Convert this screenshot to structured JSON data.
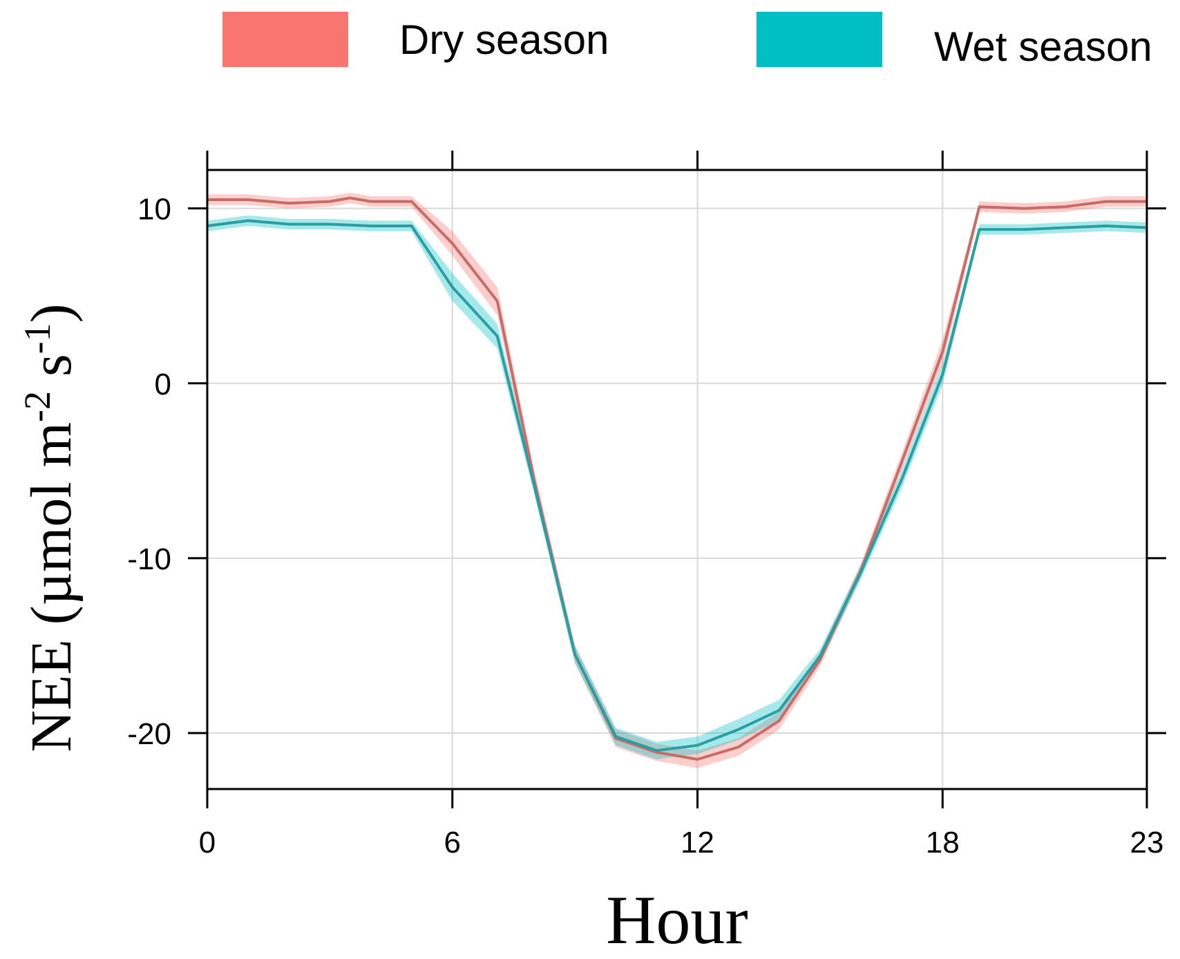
{
  "chart_data": {
    "type": "line",
    "title": "",
    "xlabel": "Hour",
    "ylabel": {
      "main": "NEE (µmol m",
      "sup1": "-2",
      "mid": " s",
      "sup2": "-1",
      "end": ")"
    },
    "xlim": [
      0,
      23
    ],
    "ylim": [
      -23.2,
      12.2
    ],
    "x_ticks": [
      0,
      6,
      12,
      18,
      23
    ],
    "y_ticks": [
      10,
      0,
      -10,
      -20
    ],
    "x_tick_labels": [
      "0",
      "6",
      "12",
      "18",
      "23"
    ],
    "y_tick_labels": [
      "10",
      "0",
      "-10",
      "-20"
    ],
    "grid": true,
    "legend_position": "top",
    "series": [
      {
        "name": "Dry season",
        "color": "#F8766D",
        "band_color": "#F8766D",
        "x": [
          0,
          1,
          2,
          3,
          3.5,
          4,
          5,
          6,
          7.1,
          8,
          9,
          10,
          11,
          12,
          13,
          14,
          15,
          16,
          17,
          18,
          18.9,
          20,
          21,
          22,
          23
        ],
        "y": [
          10.5,
          10.5,
          10.3,
          10.4,
          10.6,
          10.4,
          10.4,
          8.0,
          4.7,
          -5.5,
          -15.5,
          -20.3,
          -21.1,
          -21.5,
          -20.8,
          -19.3,
          -15.8,
          -10.7,
          -4.5,
          1.8,
          10.1,
          10.0,
          10.1,
          10.4,
          10.4
        ],
        "lower": [
          10.2,
          10.2,
          10.0,
          10.1,
          10.3,
          10.1,
          10.1,
          7.3,
          3.9,
          -6.1,
          -16.0,
          -20.8,
          -21.6,
          -22.0,
          -21.3,
          -19.8,
          -16.2,
          -11.1,
          -5.0,
          1.1,
          9.8,
          9.7,
          9.8,
          10.1,
          10.1
        ],
        "upper": [
          10.8,
          10.8,
          10.6,
          10.7,
          10.9,
          10.7,
          10.7,
          8.7,
          5.5,
          -4.9,
          -15.0,
          -19.8,
          -20.6,
          -21.0,
          -20.3,
          -18.8,
          -15.4,
          -10.3,
          -4.0,
          2.5,
          10.4,
          10.3,
          10.4,
          10.7,
          10.7
        ]
      },
      {
        "name": "Wet season",
        "color": "#00BFC4",
        "band_color": "#00BFC4",
        "x": [
          0,
          1,
          2,
          3,
          4,
          5,
          6,
          7.1,
          8,
          9,
          10,
          11,
          12,
          13,
          14,
          15,
          16,
          17,
          18,
          18.9,
          20,
          21,
          22,
          23
        ],
        "y": [
          9.0,
          9.3,
          9.1,
          9.1,
          9.0,
          9.0,
          5.5,
          2.7,
          -5.8,
          -15.5,
          -20.2,
          -21.0,
          -20.7,
          -19.8,
          -18.7,
          -15.6,
          -10.8,
          -5.5,
          0.5,
          8.8,
          8.8,
          8.9,
          9.0,
          8.9
        ],
        "lower": [
          8.7,
          9.0,
          8.8,
          8.8,
          8.7,
          8.7,
          4.7,
          2.0,
          -6.3,
          -16.0,
          -20.7,
          -21.5,
          -21.2,
          -20.4,
          -19.3,
          -16.0,
          -11.2,
          -6.0,
          -0.1,
          8.5,
          8.5,
          8.6,
          8.7,
          8.6
        ],
        "upper": [
          9.3,
          9.6,
          9.4,
          9.4,
          9.3,
          9.3,
          6.3,
          3.4,
          -5.3,
          -15.0,
          -19.7,
          -20.5,
          -20.2,
          -19.2,
          -18.1,
          -15.2,
          -10.4,
          -5.0,
          1.1,
          9.1,
          9.1,
          9.2,
          9.3,
          9.2
        ]
      }
    ]
  }
}
